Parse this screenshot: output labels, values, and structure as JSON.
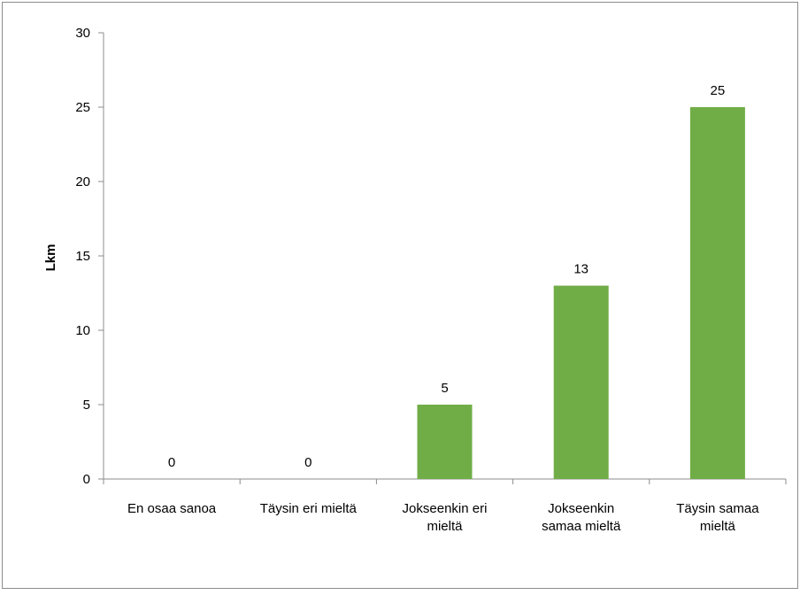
{
  "chart_data": {
    "type": "bar",
    "categories": [
      [
        "En osaa sanoa"
      ],
      [
        "Täysin eri mieltä"
      ],
      [
        "Jokseenkin eri",
        "mieltä"
      ],
      [
        "Jokseenkin",
        "samaa mieltä"
      ],
      [
        "Täysin samaa",
        "mieltä"
      ]
    ],
    "values": [
      0,
      0,
      5,
      13,
      25
    ],
    "ylabel": "Lkm",
    "xlabel": "",
    "ylim": [
      0,
      30
    ],
    "yticks": [
      0,
      5,
      10,
      15,
      20,
      25,
      30
    ],
    "grid": false,
    "legend": "none",
    "bar_color": "#70ad47",
    "axis_color": "#8c8c8c",
    "border_color": "#8c8c8c"
  }
}
